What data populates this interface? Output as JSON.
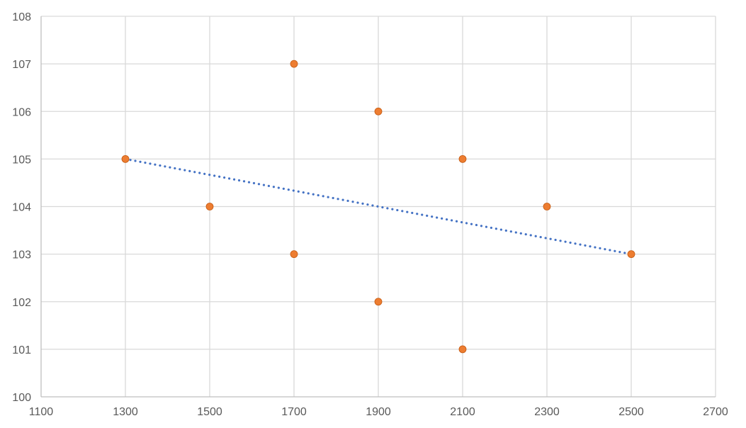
{
  "chart_data": {
    "type": "scatter",
    "title": "",
    "xlabel": "",
    "ylabel": "",
    "xlim": [
      1100,
      2700
    ],
    "ylim": [
      100,
      108
    ],
    "x_ticks": [
      1100,
      1300,
      1500,
      1700,
      1900,
      2100,
      2300,
      2500,
      2700
    ],
    "y_ticks": [
      100,
      101,
      102,
      103,
      104,
      105,
      106,
      107,
      108
    ],
    "grid": true,
    "legend": "none",
    "series": [
      {
        "type": "scatter",
        "color": "#ED7D31",
        "points": [
          {
            "x": 1300,
            "y": 105
          },
          {
            "x": 1500,
            "y": 104
          },
          {
            "x": 1700,
            "y": 107
          },
          {
            "x": 1700,
            "y": 103
          },
          {
            "x": 1900,
            "y": 106
          },
          {
            "x": 1900,
            "y": 102
          },
          {
            "x": 2100,
            "y": 105
          },
          {
            "x": 2100,
            "y": 101
          },
          {
            "x": 2300,
            "y": 104
          },
          {
            "x": 2500,
            "y": 103
          }
        ]
      },
      {
        "type": "line",
        "style": "dotted",
        "color": "#4472C4",
        "points": [
          {
            "x": 1300,
            "y": 105
          },
          {
            "x": 2500,
            "y": 103
          }
        ]
      }
    ]
  }
}
